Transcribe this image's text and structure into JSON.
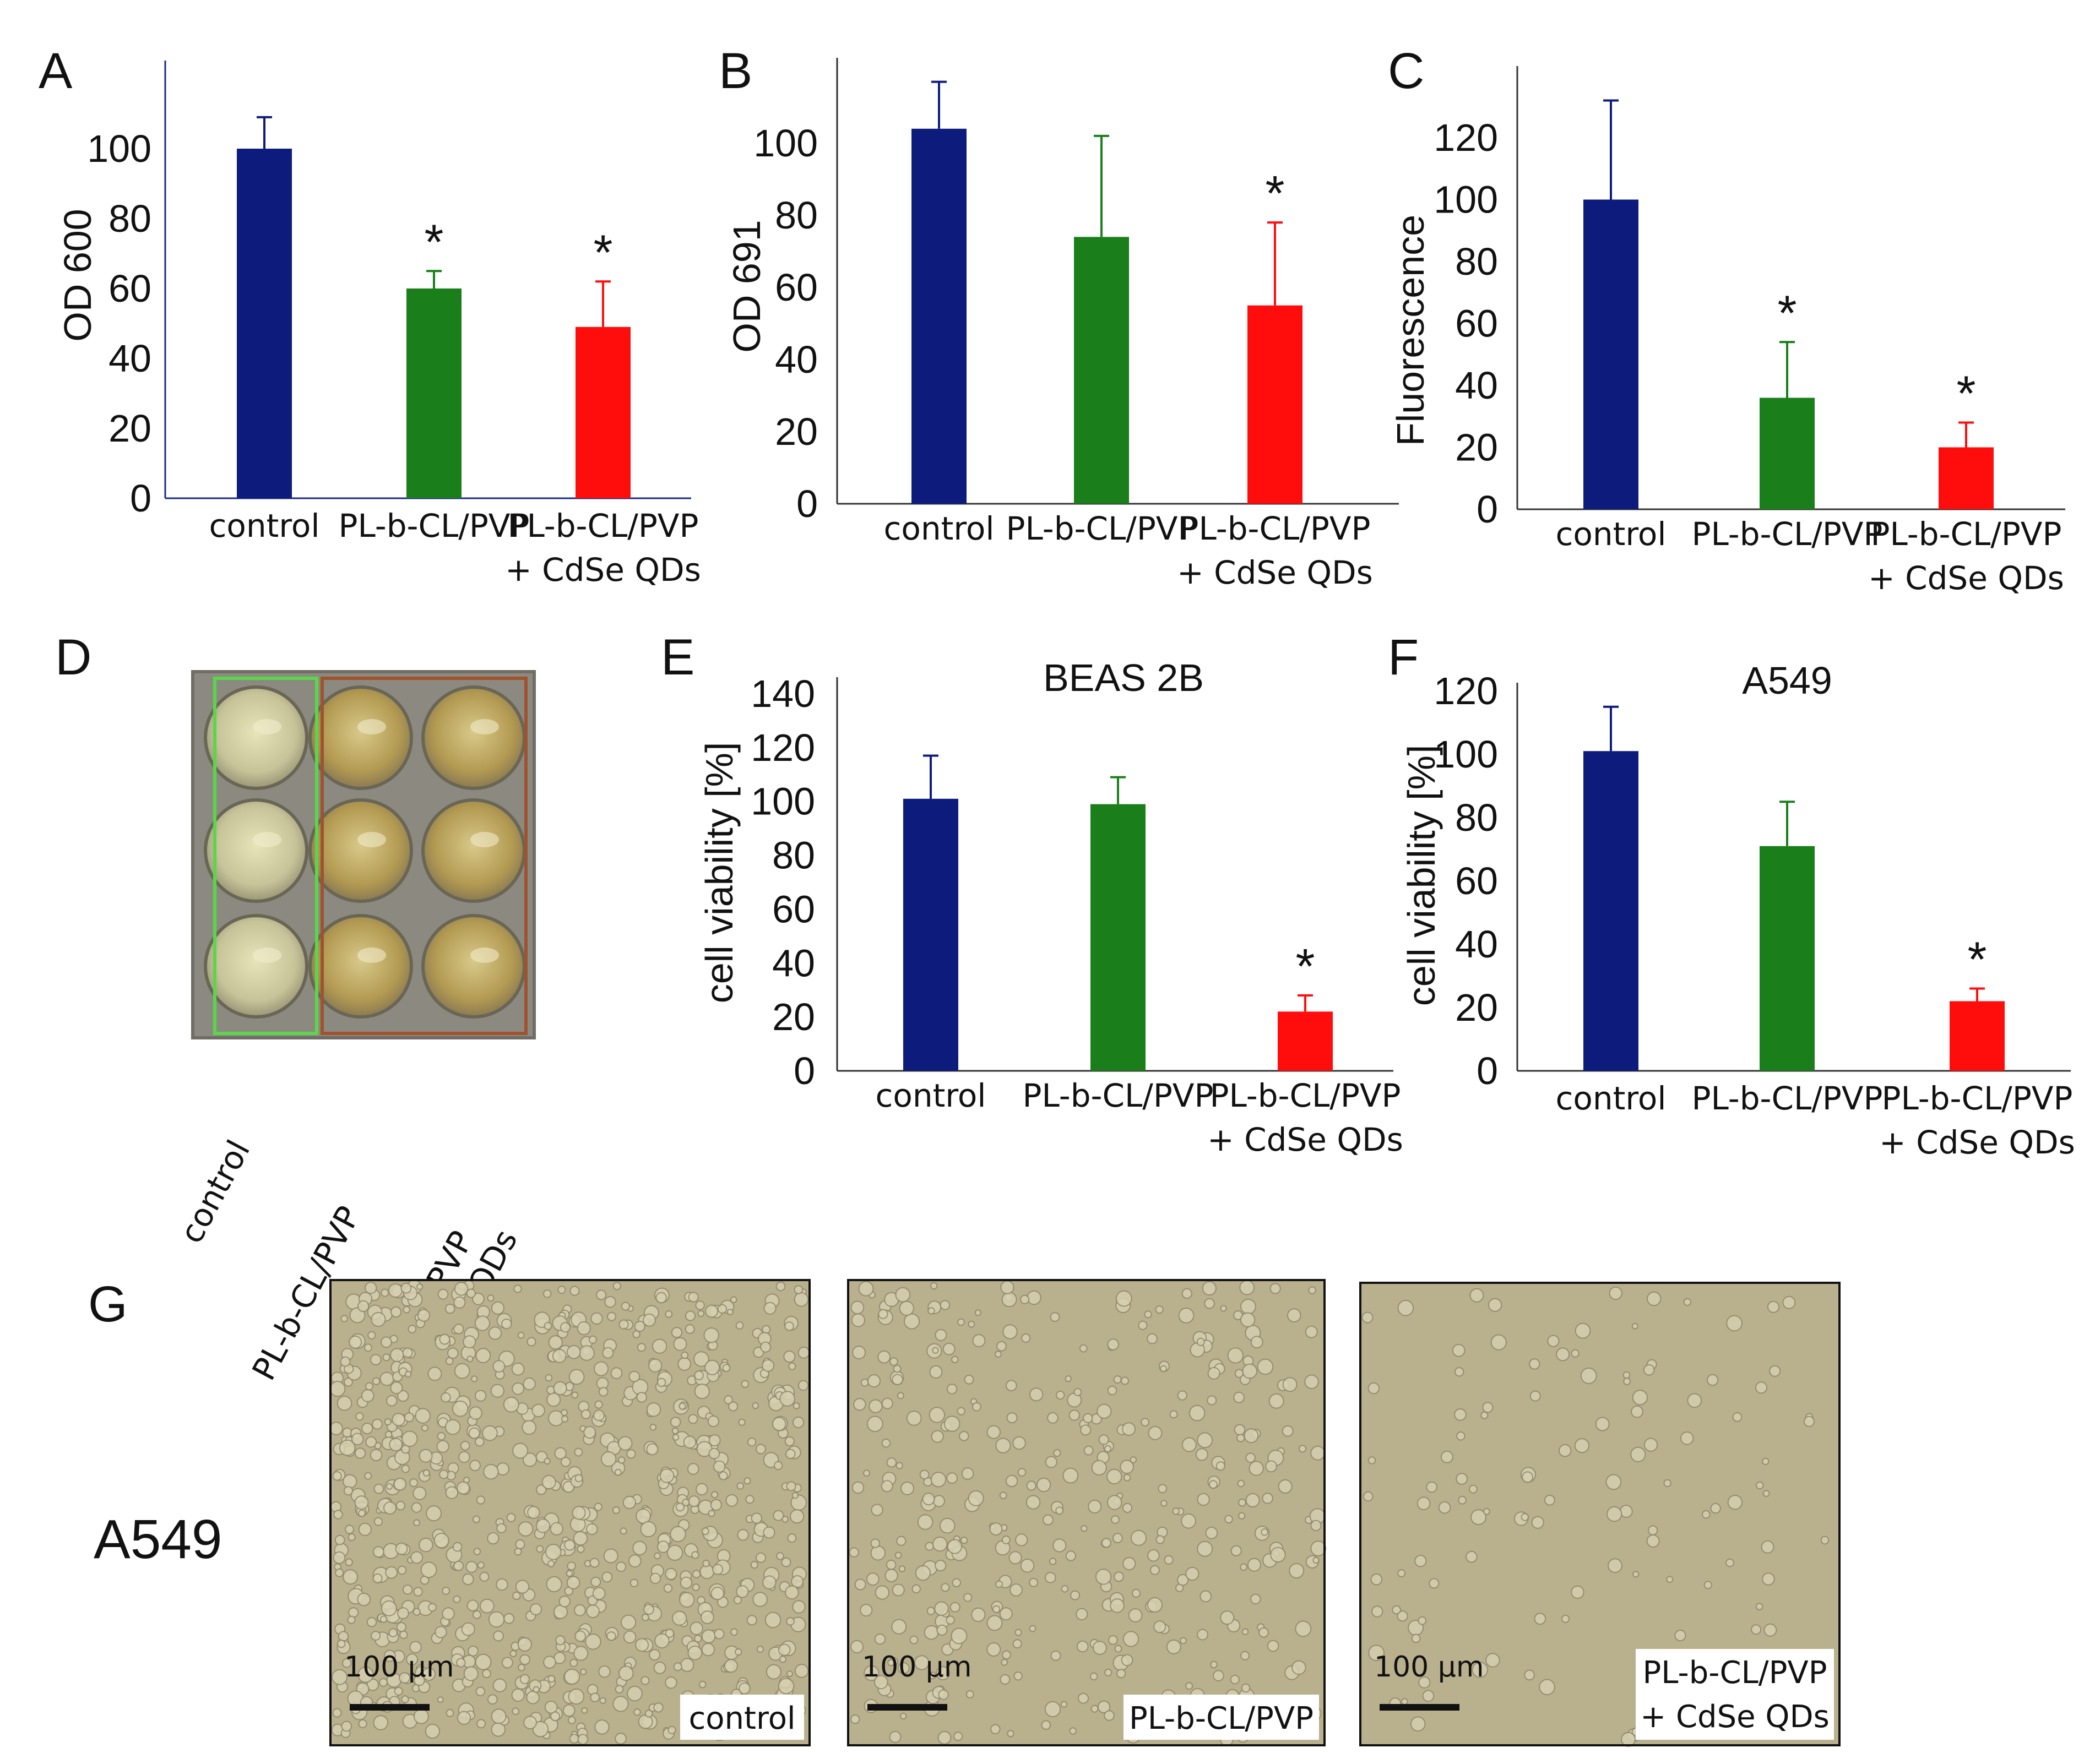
{
  "chart_data": [
    {
      "panel": "A",
      "type": "bar",
      "ylabel": "OD 600",
      "categories": [
        [
          "control"
        ],
        [
          "PL-b-CL/PVP"
        ],
        [
          "PL-b-CL/PVP",
          "+ CdSe QDs"
        ]
      ],
      "values": [
        100,
        60,
        49
      ],
      "errors": [
        9,
        5,
        13
      ],
      "significant": [
        false,
        true,
        true
      ],
      "ylim": [
        0,
        100
      ],
      "yticks": [
        0,
        20,
        40,
        60,
        80,
        100
      ],
      "colors": [
        "#0d1b7c",
        "#1a7f1a",
        "#ff0d0d"
      ]
    },
    {
      "panel": "B",
      "type": "bar",
      "ylabel": "OD 691",
      "categories": [
        [
          "control"
        ],
        [
          "PL-b-CL/PVP"
        ],
        [
          "PL-b-CL/PVP",
          "+ CdSe QDs"
        ]
      ],
      "values": [
        104,
        74,
        55
      ],
      "errors": [
        13,
        28,
        23
      ],
      "significant": [
        false,
        false,
        true
      ],
      "ylim": [
        0,
        100
      ],
      "yticks": [
        0,
        20,
        40,
        60,
        80,
        100
      ],
      "colors": [
        "#0d1b7c",
        "#1a7f1a",
        "#ff0d0d"
      ]
    },
    {
      "panel": "C",
      "type": "bar",
      "ylabel": "Fluorescence",
      "categories": [
        [
          "control"
        ],
        [
          "PL-b-CL/PVP"
        ],
        [
          "PL-b-CL/PVP",
          "+ CdSe QDs"
        ]
      ],
      "values": [
        100,
        36,
        20
      ],
      "errors": [
        32,
        18,
        8
      ],
      "significant": [
        false,
        true,
        true
      ],
      "ylim": [
        0,
        120
      ],
      "yticks": [
        0,
        20,
        40,
        60,
        80,
        100,
        120
      ],
      "colors": [
        "#0d1b7c",
        "#1a7f1a",
        "#ff0d0d"
      ]
    },
    {
      "panel": "E",
      "type": "bar",
      "title": "BEAS 2B",
      "ylabel": "cell viability [%]",
      "categories": [
        [
          "control"
        ],
        [
          "PL-b-CL/PVP"
        ],
        [
          "PL-b-CL/PVP",
          "+ CdSe QDs"
        ]
      ],
      "values": [
        101,
        99,
        22
      ],
      "errors": [
        16,
        10,
        6
      ],
      "significant": [
        false,
        false,
        true
      ],
      "ylim": [
        0,
        140
      ],
      "yticks": [
        0,
        20,
        40,
        60,
        80,
        100,
        120,
        140
      ],
      "colors": [
        "#0d1b7c",
        "#1a7f1a",
        "#ff0d0d"
      ]
    },
    {
      "panel": "F",
      "type": "bar",
      "title": "A549",
      "ylabel": "cell viability [%]",
      "categories": [
        [
          "control"
        ],
        [
          "PL-b-CL/PVP"
        ],
        [
          "PL-b-CL/PVP",
          "+ CdSe QDs"
        ]
      ],
      "values": [
        101,
        71,
        22
      ],
      "errors": [
        14,
        14,
        4
      ],
      "significant": [
        false,
        false,
        true
      ],
      "ylim": [
        0,
        120
      ],
      "yticks": [
        0,
        20,
        40,
        60,
        80,
        100,
        120
      ],
      "colors": [
        "#0d1b7c",
        "#1a7f1a",
        "#ff0d0d"
      ]
    }
  ],
  "panel_d": {
    "letter": "D",
    "labels": [
      [
        "control"
      ],
      [
        "PL-b-CL/PVP"
      ],
      [
        "PL-b-CL/PVP",
        "+ CdSe QDs"
      ]
    ],
    "frame_colors": [
      "#5bd64a",
      "#a0522d"
    ]
  },
  "panel_g": {
    "letter": "G",
    "row_label": "A549",
    "images": [
      {
        "scale_label": "100 µm",
        "label": [
          "control"
        ]
      },
      {
        "scale_label": "100 µm",
        "label": [
          "PL-b-CL/PVP"
        ]
      },
      {
        "scale_label": "100 µm",
        "label": [
          "PL-b-CL/PVP",
          "+ CdSe QDs"
        ]
      }
    ]
  },
  "significance_marker": "*"
}
